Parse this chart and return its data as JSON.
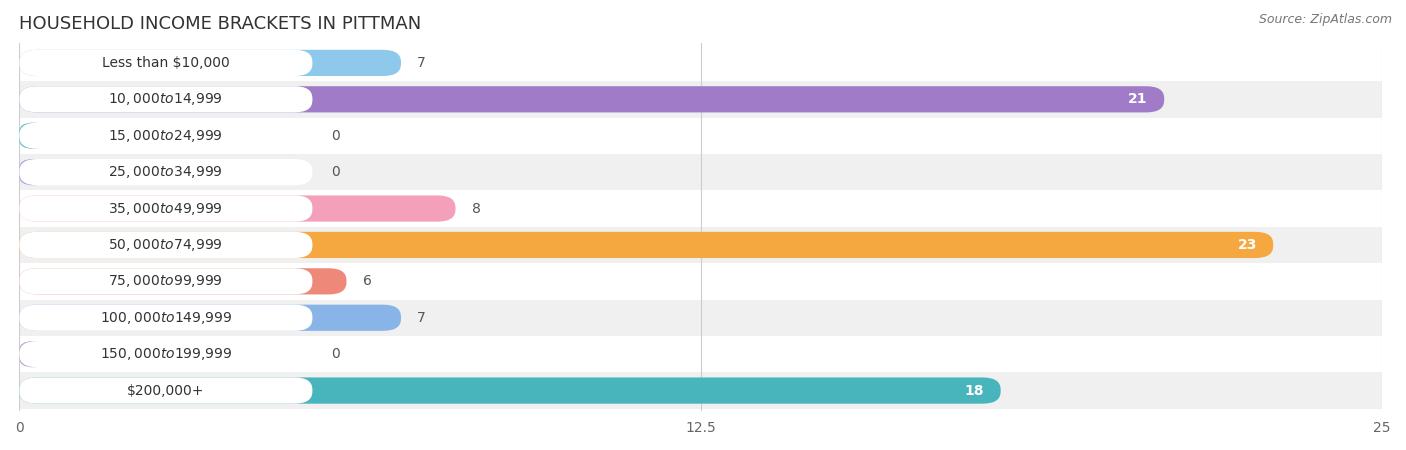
{
  "title": "HOUSEHOLD INCOME BRACKETS IN PITTMAN",
  "source": "Source: ZipAtlas.com",
  "categories": [
    "Less than $10,000",
    "$10,000 to $14,999",
    "$15,000 to $24,999",
    "$25,000 to $34,999",
    "$35,000 to $49,999",
    "$50,000 to $74,999",
    "$75,000 to $99,999",
    "$100,000 to $149,999",
    "$150,000 to $199,999",
    "$200,000+"
  ],
  "values": [
    7,
    21,
    0,
    0,
    8,
    23,
    6,
    7,
    0,
    18
  ],
  "bar_colors": [
    "#8EC8EA",
    "#A07CC8",
    "#5DBFBF",
    "#AAA0DC",
    "#F4A0BB",
    "#F5A840",
    "#EE8878",
    "#88B4E8",
    "#C0A0D0",
    "#48B4BC"
  ],
  "row_colors": [
    "#ffffff",
    "#f0f0f0"
  ],
  "xlim": [
    0,
    25
  ],
  "xticks": [
    0,
    12.5,
    25
  ],
  "background_color": "#ffffff",
  "title_fontsize": 13,
  "source_fontsize": 9,
  "label_fontsize": 10,
  "value_fontsize": 10
}
